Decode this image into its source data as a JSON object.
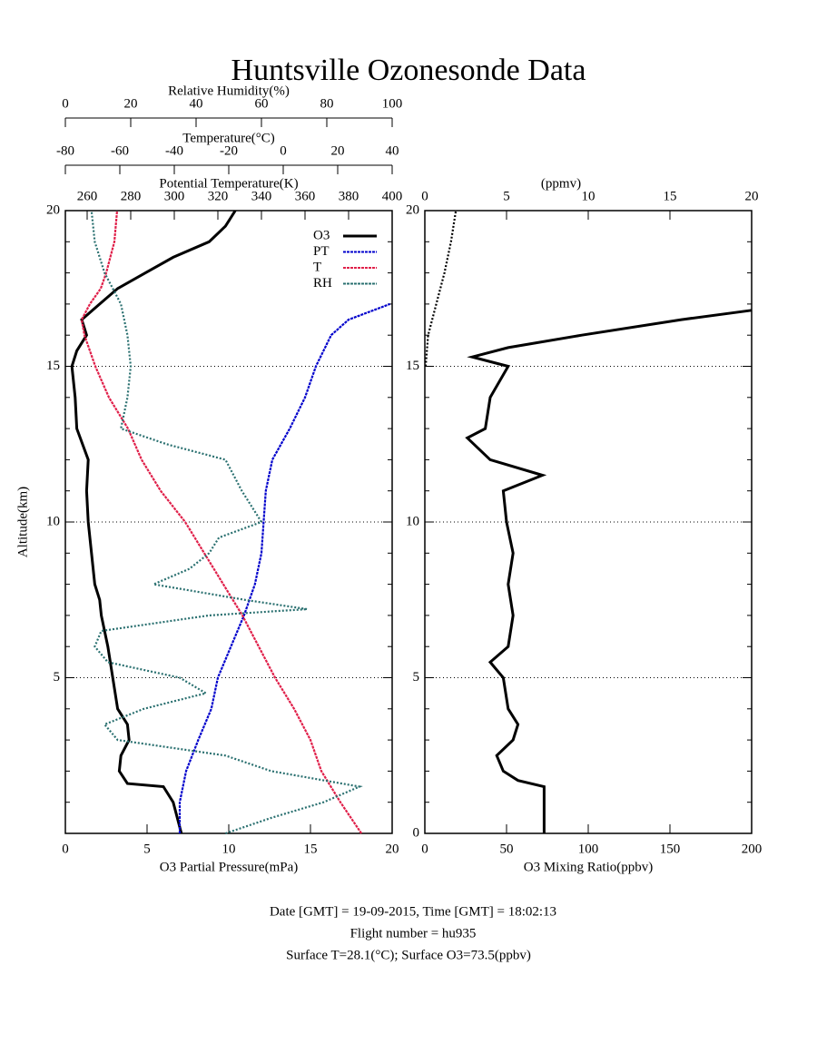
{
  "header": {
    "title": "Huntsville Ozonesonde Data"
  },
  "footnotes": [
    "Date [GMT] = 19-09-2015,  Time [GMT] = 18:02:13",
    "Flight number = hu935",
    "Surface T=28.1(°C); Surface O3=73.5(ppbv)"
  ],
  "chart_data": [
    {
      "type": "line",
      "xlabel": "O3 Partial Pressure(mPa)",
      "xlim": [
        0,
        20
      ],
      "xticks": [
        0,
        5,
        10,
        15,
        20
      ],
      "ylabel": "Altitude(km)",
      "ylim": [
        0,
        20
      ],
      "yticks": [
        5,
        10,
        15,
        20
      ],
      "grid": true,
      "legend": "upper right",
      "top_axes": [
        {
          "label": "Potential Temperature(K)",
          "lim": [
            250,
            400
          ],
          "ticks": [
            260,
            280,
            300,
            320,
            340,
            360,
            380,
            400
          ]
        },
        {
          "label": "Temperature(°C)",
          "lim": [
            -80,
            40
          ],
          "ticks": [
            -80,
            -60,
            -40,
            -20,
            0,
            20,
            40
          ]
        },
        {
          "label": "Relative Humidity(%)",
          "lim": [
            0,
            100
          ],
          "ticks": [
            0,
            20,
            40,
            60,
            80,
            100
          ]
        }
      ],
      "series": [
        {
          "name": "O3",
          "color": "#000000",
          "axis": "x",
          "values": [
            7.1,
            6.6,
            6.0,
            3.8,
            3.3,
            3.4,
            3.9,
            3.8,
            3.2,
            2.9,
            2.6,
            2.2,
            2.1,
            1.8,
            1.6,
            1.4,
            1.3,
            1.4,
            0.7,
            0.6,
            0.4,
            0.7,
            1.3,
            1.0,
            2.1,
            3.2,
            4.9,
            6.6,
            8.8,
            9.8,
            10.4
          ],
          "altitude": [
            0,
            1,
            1.5,
            1.6,
            2,
            2.5,
            3,
            3.5,
            4,
            5,
            6,
            7,
            7.5,
            8,
            9,
            10,
            11,
            12,
            13,
            14,
            15,
            15.5,
            16,
            16.5,
            17,
            17.5,
            18,
            18.5,
            19,
            19.5,
            20
          ]
        },
        {
          "name": "PT",
          "color": "#0000cc",
          "axis": "x2",
          "values": [
            302.5,
            302.5,
            305.4,
            311,
            317,
            320,
            326,
            332,
            337,
            340,
            341,
            342,
            345,
            353,
            360,
            365,
            372,
            380,
            399
          ],
          "altitude": [
            0,
            1,
            2,
            3,
            4,
            5,
            6,
            7,
            8,
            9,
            10,
            11,
            12,
            13,
            14,
            15,
            16,
            16.5,
            17
          ]
        },
        {
          "name": "T",
          "color": "#e0204a",
          "axis": "x3",
          "values": [
            28.7,
            21,
            14,
            10,
            4,
            -3,
            -9,
            -15,
            -22,
            -29,
            -36,
            -45,
            -52,
            -57,
            -64,
            -69,
            -73,
            -74,
            -71,
            -67,
            -65,
            -62,
            -61
          ],
          "altitude": [
            0,
            1,
            2,
            3,
            4,
            5,
            6,
            7,
            8,
            9,
            10,
            11,
            12,
            13,
            14,
            15,
            16,
            16.5,
            17,
            17.5,
            18,
            19,
            20
          ]
        },
        {
          "name": "RH",
          "color": "#2a7070",
          "axis": "x4",
          "values": [
            49,
            63,
            79,
            90,
            63,
            49,
            16,
            12,
            24,
            43,
            35,
            13,
            9,
            11,
            44,
            74,
            55,
            27,
            38,
            44,
            47,
            60,
            54,
            49,
            31,
            17,
            19,
            20,
            19,
            17,
            12,
            9,
            8
          ],
          "altitude": [
            0,
            0.5,
            1,
            1.5,
            2,
            2.5,
            3,
            3.5,
            4,
            4.5,
            5,
            5.5,
            6,
            6.5,
            7,
            7.2,
            7.5,
            8,
            8.5,
            9,
            9.5,
            10,
            11,
            12,
            12.5,
            13,
            14,
            15,
            16,
            17,
            18,
            19,
            20
          ]
        }
      ]
    },
    {
      "type": "line",
      "xlabel": "O3 Mixing Ratio(ppbv)",
      "xlim": [
        0,
        200
      ],
      "xticks": [
        0,
        50,
        100,
        150,
        200
      ],
      "ylim": [
        0,
        20
      ],
      "yticks": [
        0,
        5,
        10,
        15,
        20
      ],
      "grid": true,
      "top_axes": [
        {
          "label": "(ppmv)",
          "lim": [
            0,
            20
          ],
          "ticks": [
            0,
            5,
            10,
            15,
            20
          ]
        }
      ],
      "series": [
        {
          "color": "#000000",
          "axis": "x",
          "values": [
            73,
            73,
            73,
            57,
            48,
            44,
            54,
            57,
            51,
            48,
            40,
            51,
            54,
            51,
            54,
            50,
            48,
            72,
            40,
            26,
            37,
            40,
            51,
            29,
            51,
            96,
            157,
            200
          ],
          "altitude": [
            0,
            1,
            1.5,
            1.7,
            2,
            2.5,
            3,
            3.5,
            4,
            5,
            5.5,
            6,
            7,
            8,
            9,
            10,
            11,
            11.5,
            12,
            12.7,
            13,
            14,
            15,
            15.3,
            15.6,
            16,
            16.5,
            16.8
          ]
        },
        {
          "color": "#000000",
          "axis": "x2",
          "values": [
            0.05,
            0.2,
            0.7,
            1.2,
            1.6,
            1.9
          ],
          "altitude": [
            15,
            16,
            17,
            18,
            19,
            20
          ]
        }
      ]
    }
  ]
}
